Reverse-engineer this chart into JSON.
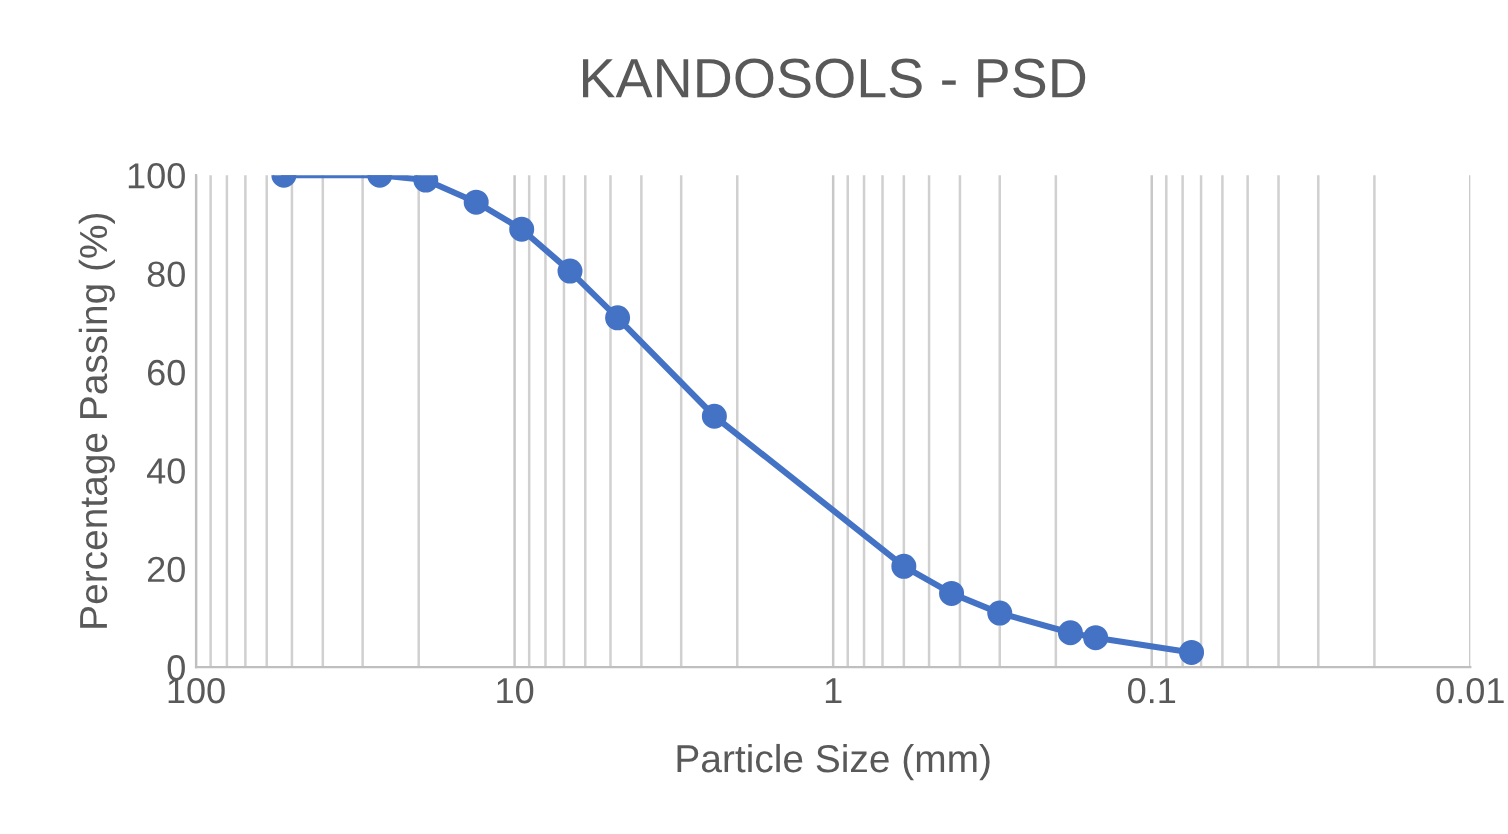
{
  "chart_data": {
    "type": "line",
    "title": "KANDOSOLS - PSD",
    "xlabel": "Particle Size (mm)",
    "ylabel": "Percentage Passing (%)",
    "x": [
      53,
      26.5,
      19,
      13.2,
      9.5,
      6.7,
      4.75,
      2.36,
      0.6,
      0.425,
      0.3,
      0.18,
      0.15,
      0.075
    ],
    "series": [
      {
        "color": "#4472c4",
        "values": [
          100,
          100,
          99,
          94.5,
          89,
          80.5,
          71,
          51,
          20.5,
          15,
          11,
          7,
          6,
          3
        ]
      }
    ],
    "log": "x",
    "xlim": [
      100,
      0.01
    ],
    "xticks": [
      100,
      10,
      1,
      0.1,
      0.01
    ],
    "ylim": [
      0,
      100
    ],
    "yticks": [
      0,
      20,
      40,
      60,
      80,
      100
    ],
    "grid": "x",
    "marker": "circle",
    "line_style": "solid",
    "legend": false
  }
}
